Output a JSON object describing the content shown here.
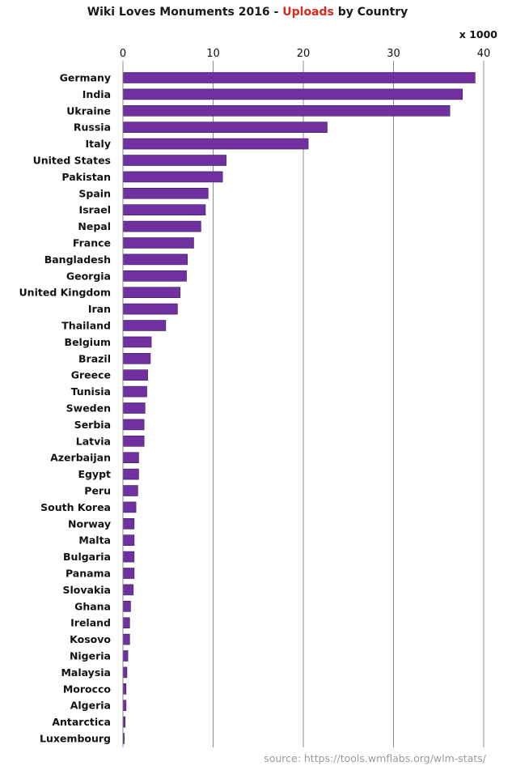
{
  "chart_data": {
    "type": "bar",
    "orientation": "horizontal",
    "title": {
      "prefix": "Wiki Loves Monuments 2016  - ",
      "highlight": "Uploads",
      "suffix": " by Country"
    },
    "x_unit_label": "x 1000",
    "xlim": [
      0,
      40
    ],
    "xticks": [
      "0",
      "10",
      "20",
      "30",
      "40"
    ],
    "grid": true,
    "bar_color": "#7030a0",
    "title_accent_color": "#d42a1f",
    "source": "source: https://tools.wmflabs.org/wlm-stats/",
    "categories": [
      "Germany",
      "India",
      "Ukraine",
      "Russia",
      "Italy",
      "United States",
      "Pakistan",
      "Spain",
      "Israel",
      "Nepal",
      "France",
      "Bangladesh",
      "Georgia",
      "United Kingdom",
      "Iran",
      "Thailand",
      "Belgium",
      "Brazil",
      "Greece",
      "Tunisia",
      "Sweden",
      "Serbia",
      "Latvia",
      "Azerbaijan",
      "Egypt",
      "Peru",
      "South Korea",
      "Norway",
      "Malta",
      "Bulgaria",
      "Panama",
      "Slovakia",
      "Ghana",
      "Ireland",
      "Kosovo",
      "Nigeria",
      "Malaysia",
      "Morocco",
      "Algeria",
      "Antarctica",
      "Luxembourg"
    ],
    "values": [
      39.0,
      37.6,
      36.2,
      22.6,
      20.5,
      11.4,
      11.0,
      9.4,
      9.1,
      8.6,
      7.8,
      7.1,
      7.0,
      6.3,
      6.0,
      4.7,
      3.1,
      3.0,
      2.7,
      2.6,
      2.4,
      2.3,
      2.3,
      1.7,
      1.7,
      1.6,
      1.4,
      1.2,
      1.2,
      1.2,
      1.2,
      1.1,
      0.8,
      0.7,
      0.7,
      0.5,
      0.4,
      0.3,
      0.3,
      0.2,
      0.1
    ]
  }
}
